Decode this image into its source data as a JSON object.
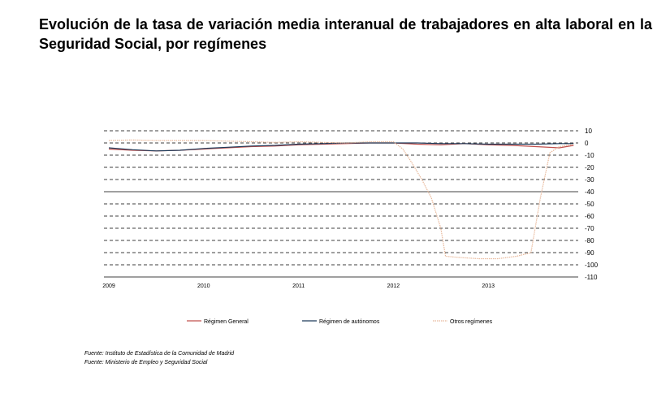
{
  "title": "Evolución de la tasa de variación media interanual de trabajadores en alta laboral en la Seguridad Social, por  regímenes",
  "sources": [
    "Fuente: Instituto de Estadística de la Comunidad de Madrid",
    "Fuente: Ministerio de Empleo y Seguridad Social"
  ],
  "chart_data": {
    "type": "line",
    "title": "Evolución de la tasa de variación media interanual de trabajadores en alta laboral en la Seguridad Social, por  regímenes",
    "xlabel": "",
    "ylabel": "",
    "x_ticks": [
      "2009",
      "2010",
      "2011",
      "2012",
      "2013"
    ],
    "xlim": [
      2009,
      2014
    ],
    "ylim": [
      -110,
      10
    ],
    "y_ticks": [
      10,
      0,
      -10,
      -20,
      -30,
      -40,
      -50,
      -60,
      -70,
      -80,
      -90,
      -100,
      -110
    ],
    "y_axis_position": "right",
    "grid": "horizontal dashed",
    "legend_position": "bottom",
    "series": [
      {
        "name": "Régimen General",
        "color": "#c0504d",
        "style": "solid",
        "x": [
          2009.0,
          2009.25,
          2009.5,
          2009.75,
          2010.0,
          2010.25,
          2010.5,
          2010.75,
          2011.0,
          2011.25,
          2011.5,
          2011.75,
          2012.0,
          2012.25,
          2012.5,
          2012.75,
          2013.0,
          2013.25,
          2013.5,
          2013.75,
          2013.9
        ],
        "y": [
          -5,
          -6,
          -6.5,
          -6,
          -5,
          -4,
          -3,
          -2.5,
          -1.5,
          -1,
          -0.5,
          0,
          0,
          -1,
          -1.5,
          -0.5,
          -1.5,
          -2,
          -3,
          -4,
          -2
        ]
      },
      {
        "name": "Régimen de autónomos",
        "color": "#1f3b5a",
        "style": "solid",
        "x": [
          2009.0,
          2009.25,
          2009.5,
          2009.75,
          2010.0,
          2010.25,
          2010.5,
          2010.75,
          2011.0,
          2011.25,
          2011.5,
          2011.75,
          2012.0,
          2012.25,
          2012.5,
          2012.75,
          2013.0,
          2013.25,
          2013.5,
          2013.75,
          2013.9
        ],
        "y": [
          -4,
          -5.5,
          -6.5,
          -6,
          -4.5,
          -3.5,
          -2.5,
          -2,
          -1,
          -0.5,
          0,
          0,
          0,
          0,
          -0.5,
          -0.5,
          -1,
          -1,
          -1,
          -0.5,
          -0.5
        ]
      },
      {
        "name": "Otros regímenes",
        "color": "#e8b89a",
        "style": "dotted",
        "x": [
          2009.0,
          2009.25,
          2009.5,
          2009.75,
          2010.0,
          2010.25,
          2010.5,
          2010.75,
          2011.0,
          2011.25,
          2011.5,
          2011.75,
          2012.0,
          2012.1,
          2012.2,
          2012.3,
          2012.4,
          2012.5,
          2012.55,
          2012.7,
          2012.9,
          2013.1,
          2013.3,
          2013.45,
          2013.55,
          2013.65,
          2013.75,
          2013.9
        ],
        "y": [
          2,
          2.5,
          2,
          2,
          2,
          1.5,
          1,
          0.5,
          1,
          0.5,
          0,
          1,
          1,
          -5,
          -17,
          -30,
          -45,
          -70,
          -93,
          -94,
          -95,
          -95,
          -93,
          -90,
          -45,
          -8,
          -3,
          -1
        ]
      }
    ]
  }
}
